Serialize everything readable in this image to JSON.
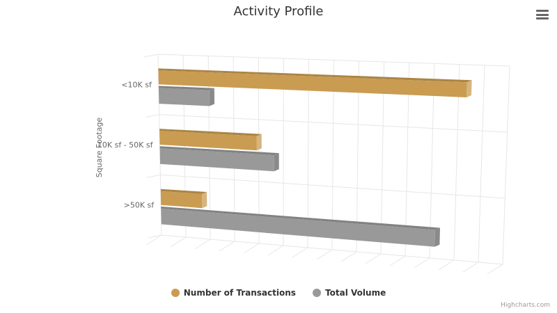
{
  "chart_data": {
    "type": "bar",
    "title": "Activity Profile",
    "ylabel": "Square Footage",
    "categories": [
      "<10K sf",
      "10K sf - 50K sf",
      ">50K sf"
    ],
    "series": [
      {
        "name": "Number of Transactions",
        "color": "#c99c52",
        "values": [
          88,
          28,
          12
        ]
      },
      {
        "name": "Total Volume",
        "color": "#999999",
        "values": [
          14.5,
          33,
          80
        ]
      }
    ],
    "xlim": [
      0,
      100
    ],
    "value_axis_labels": false,
    "grid": true,
    "legend": "bottom-center",
    "three_d": true
  },
  "credit": "Highcharts.com",
  "menu_icon": "hamburger-menu-icon"
}
